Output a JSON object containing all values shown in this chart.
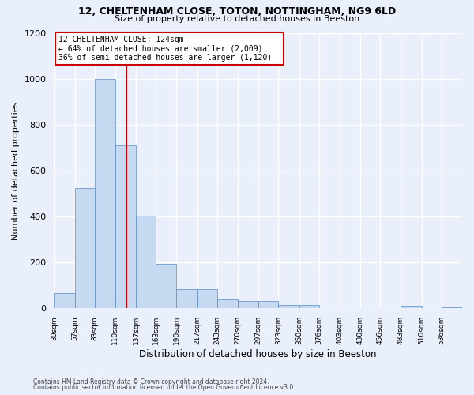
{
  "title1": "12, CHELTENHAM CLOSE, TOTON, NOTTINGHAM, NG9 6LD",
  "title2": "Size of property relative to detached houses in Beeston",
  "xlabel": "Distribution of detached houses by size in Beeston",
  "ylabel": "Number of detached properties",
  "footnote1": "Contains HM Land Registry data © Crown copyright and database right 2024.",
  "footnote2": "Contains public sector information licensed under the Open Government Licence v3.0.",
  "annotation_line1": "12 CHELTENHAM CLOSE: 124sqm",
  "annotation_line2": "← 64% of detached houses are smaller (2,009)",
  "annotation_line3": "36% of semi-detached houses are larger (1,120) →",
  "property_size": 124,
  "bin_edges": [
    30,
    57,
    83,
    110,
    137,
    163,
    190,
    217,
    243,
    270,
    297,
    323,
    350,
    376,
    403,
    430,
    456,
    483,
    510,
    536,
    563
  ],
  "bar_heights": [
    65,
    525,
    1000,
    710,
    405,
    195,
    85,
    85,
    40,
    32,
    32,
    15,
    15,
    0,
    0,
    0,
    0,
    10,
    0,
    5
  ],
  "bar_color": "#c5d9f0",
  "bar_edge_color": "#5a8ac6",
  "vline_color": "#cc0000",
  "annotation_box_color": "#cc0000",
  "background_color": "#eaf0fb",
  "grid_color": "#ffffff",
  "ylim": [
    0,
    1200
  ],
  "yticks": [
    0,
    200,
    400,
    600,
    800,
    1000,
    1200
  ]
}
